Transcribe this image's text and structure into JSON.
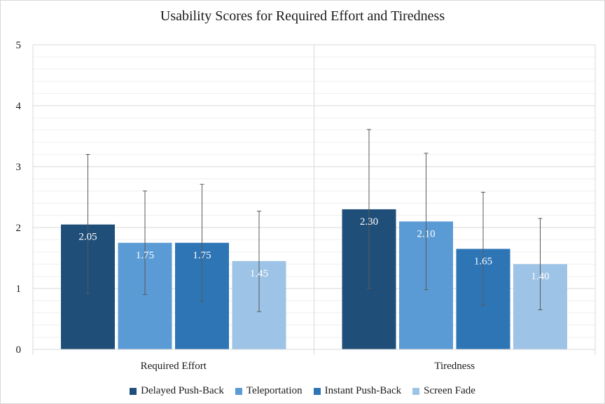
{
  "chart_data": {
    "type": "bar",
    "title": "Usability Scores for Required Effort and Tiredness",
    "categories": [
      "Required Effort",
      "Tiredness"
    ],
    "ylim": [
      0,
      5
    ],
    "yticks": [
      "0",
      "1",
      "2",
      "3",
      "4",
      "5"
    ],
    "grid": true,
    "legend_position": "bottom",
    "series": [
      {
        "name": "Delayed Push-Back",
        "color": "#1f4e79",
        "values": [
          2.05,
          2.3
        ],
        "labels": [
          "2.05",
          "2.30"
        ],
        "err_low": [
          0.92,
          1.0
        ],
        "err_high": [
          3.2,
          3.61
        ]
      },
      {
        "name": "Teleportation",
        "color": "#5b9bd5",
        "values": [
          1.75,
          2.1
        ],
        "labels": [
          "1.75",
          "2.10"
        ],
        "err_low": [
          0.9,
          0.98
        ],
        "err_high": [
          2.6,
          3.22
        ]
      },
      {
        "name": "Instant Push-Back",
        "color": "#2e75b6",
        "values": [
          1.75,
          1.65
        ],
        "labels": [
          "1.75",
          "1.65"
        ],
        "err_low": [
          0.79,
          0.72
        ],
        "err_high": [
          2.71,
          2.58
        ]
      },
      {
        "name": "Screen Fade",
        "color": "#9dc3e6",
        "values": [
          1.45,
          1.4
        ],
        "labels": [
          "1.45",
          "1.40"
        ],
        "err_low": [
          0.62,
          0.65
        ],
        "err_high": [
          2.27,
          2.15
        ]
      }
    ]
  }
}
